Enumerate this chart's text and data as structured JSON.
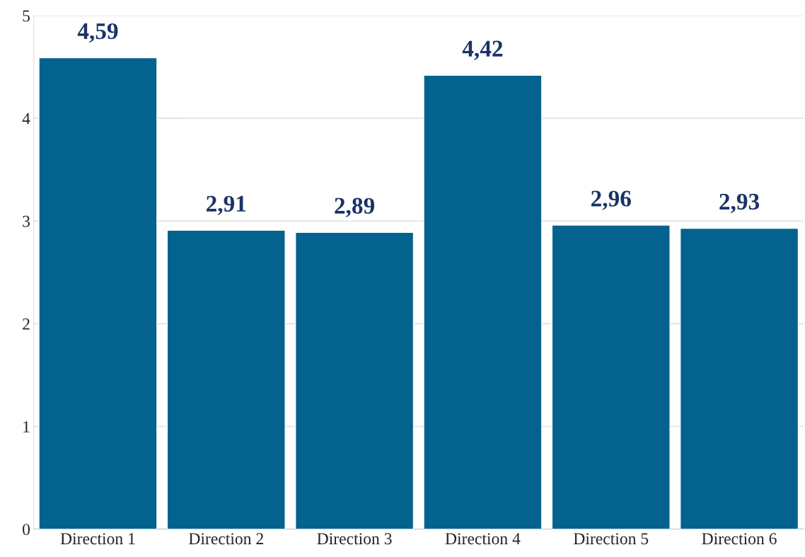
{
  "chart_data": {
    "type": "bar",
    "categories": [
      "Direction 1",
      "Direction 2",
      "Direction 3",
      "Direction 4",
      "Direction 5",
      "Direction 6"
    ],
    "values": [
      4.59,
      2.91,
      2.89,
      4.42,
      2.96,
      2.93
    ],
    "value_labels": [
      "4,59",
      "2,91",
      "2,89",
      "4,42",
      "2,96",
      "2,93"
    ],
    "color": "#04628f",
    "ylim": [
      0,
      5
    ],
    "yticks": [
      0,
      1,
      2,
      3,
      4,
      5
    ],
    "grid": "y"
  }
}
